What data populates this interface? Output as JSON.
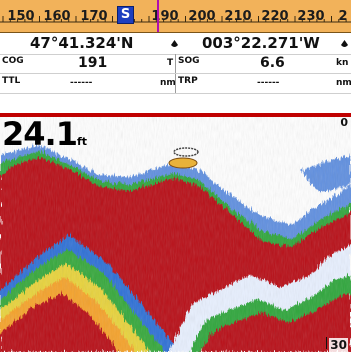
{
  "compass": {
    "ticks": [
      "150",
      "160",
      "170",
      "190",
      "200",
      "210",
      "220",
      "230",
      "2"
    ],
    "direction": "S",
    "colors": {
      "tape": "#f2b25a",
      "direction_box": "#1e3fbf",
      "heading_marker": "#b00fb0"
    }
  },
  "position": {
    "latitude": "47°41.324'N",
    "longitude": "003°22.271'W",
    "waypoint_icon": "waypoint-icon"
  },
  "data": {
    "cog": {
      "label": "COG",
      "value": "191",
      "unit": "T"
    },
    "sog": {
      "label": "SOG",
      "value": "6.6",
      "unit": "kn"
    },
    "ttl": {
      "label": "TTL",
      "value": "------",
      "unit": "nm"
    },
    "trp": {
      "label": "TRP",
      "value": "------",
      "unit": "nm"
    }
  },
  "sonar": {
    "depth_value": "24.1",
    "depth_unit": "ft",
    "range_top": "0",
    "range_bottom": "30"
  }
}
